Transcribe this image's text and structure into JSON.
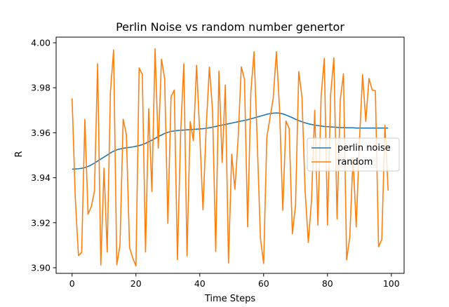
{
  "chart_data": {
    "type": "line",
    "title": "Perlin Noise vs random number genertor",
    "xlabel": "Time Steps",
    "ylabel": "R",
    "xlim": [
      -5,
      104
    ],
    "ylim": [
      3.8975,
      4.0025
    ],
    "xticks": [
      0,
      20,
      40,
      60,
      80,
      100
    ],
    "yticks": [
      3.9,
      3.92,
      3.94,
      3.96,
      3.98,
      4.0
    ],
    "ytick_labels": [
      "3.90",
      "3.92",
      "3.94",
      "3.96",
      "3.98",
      "4.00"
    ],
    "grid": false,
    "legend_placement": "center-right",
    "series": [
      {
        "name": "perlin noise",
        "color": "#1f77b4",
        "x": [
          0,
          1,
          2,
          3,
          4,
          5,
          6,
          7,
          8,
          9,
          10,
          11,
          12,
          13,
          14,
          15,
          16,
          17,
          18,
          19,
          20,
          21,
          22,
          23,
          24,
          25,
          26,
          27,
          28,
          29,
          30,
          31,
          32,
          33,
          34,
          35,
          36,
          37,
          38,
          39,
          40,
          41,
          42,
          43,
          44,
          45,
          46,
          47,
          48,
          49,
          50,
          51,
          52,
          53,
          54,
          55,
          56,
          57,
          58,
          59,
          60,
          61,
          62,
          63,
          64,
          65,
          66,
          67,
          68,
          69,
          70,
          71,
          72,
          73,
          74,
          75,
          76,
          77,
          78,
          79,
          80,
          81,
          82,
          83,
          84,
          85,
          86,
          87,
          88,
          89,
          90,
          91,
          92,
          93,
          94,
          95,
          96,
          97,
          98,
          99
        ],
        "y": [
          3.9438,
          3.9439,
          3.944,
          3.9442,
          3.9445,
          3.945,
          3.9457,
          3.9465,
          3.9474,
          3.9483,
          3.9492,
          3.9501,
          3.951,
          3.9518,
          3.9524,
          3.9528,
          3.9531,
          3.9533,
          3.9535,
          3.9537,
          3.954,
          3.9543,
          3.9547,
          3.9553,
          3.956,
          3.9567,
          3.9575,
          3.9583,
          3.959,
          3.9597,
          3.9602,
          3.9606,
          3.9608,
          3.961,
          3.9611,
          3.9612,
          3.9613,
          3.9614,
          3.9615,
          3.9616,
          3.9617,
          3.9618,
          3.962,
          3.9622,
          3.9625,
          3.9628,
          3.9631,
          3.9634,
          3.9637,
          3.964,
          3.9643,
          3.9646,
          3.9649,
          3.9652,
          3.9655,
          3.9658,
          3.9662,
          3.9666,
          3.967,
          3.9674,
          3.9678,
          3.9682,
          3.9685,
          3.9687,
          3.9688,
          3.9687,
          3.9684,
          3.9679,
          3.9673,
          3.9667,
          3.966,
          3.9654,
          3.9649,
          3.9644,
          3.964,
          3.9637,
          3.9634,
          3.9632,
          3.963,
          3.9628,
          3.9627,
          3.9626,
          3.9625,
          3.9624,
          3.9623,
          3.9623,
          3.9622,
          3.9622,
          3.9622,
          3.9621,
          3.9621,
          3.9621,
          3.9621,
          3.9621,
          3.9621,
          3.9621,
          3.9621,
          3.9621,
          3.9621,
          3.9621
        ]
      },
      {
        "name": "random",
        "color": "#ff7f0e",
        "x": [
          0,
          1,
          2,
          3,
          4,
          5,
          6,
          7,
          8,
          9,
          10,
          11,
          12,
          13,
          14,
          15,
          16,
          17,
          18,
          19,
          20,
          21,
          22,
          23,
          24,
          25,
          26,
          27,
          28,
          29,
          30,
          31,
          32,
          33,
          34,
          35,
          36,
          37,
          38,
          39,
          40,
          41,
          42,
          43,
          44,
          45,
          46,
          47,
          48,
          49,
          50,
          51,
          52,
          53,
          54,
          55,
          56,
          57,
          58,
          59,
          60,
          61,
          62,
          63,
          64,
          65,
          66,
          67,
          68,
          69,
          70,
          71,
          72,
          73,
          74,
          75,
          76,
          77,
          78,
          79,
          80,
          81,
          82,
          83,
          84,
          85,
          86,
          87,
          88,
          89,
          90,
          91,
          92,
          93,
          94,
          95,
          96,
          97,
          98,
          99
        ],
        "y": [
          3.9753,
          3.931,
          3.9054,
          3.9068,
          3.966,
          3.9238,
          3.9271,
          3.934,
          3.9907,
          3.9012,
          3.9443,
          3.907,
          3.9779,
          3.9968,
          3.9013,
          3.91,
          3.966,
          3.9592,
          3.909,
          3.9043,
          3.9008,
          3.9888,
          3.986,
          3.907,
          3.9707,
          3.9339,
          3.9974,
          3.9532,
          3.9927,
          3.984,
          3.9198,
          3.976,
          3.979,
          3.9036,
          3.96,
          3.9907,
          3.9052,
          3.965,
          3.9565,
          3.99,
          3.959,
          3.9258,
          3.962,
          3.9892,
          3.97,
          3.9072,
          3.9874,
          3.9468,
          3.9812,
          3.9021,
          3.9505,
          3.9349,
          3.9572,
          3.9893,
          3.9837,
          3.9182,
          3.978,
          3.996,
          3.956,
          3.913,
          3.9019,
          3.958,
          3.9667,
          3.9753,
          3.996,
          3.9702,
          3.9255,
          3.9652,
          3.962,
          3.9151,
          3.9279,
          3.9872,
          3.976,
          3.934,
          3.9112,
          3.93,
          3.97,
          3.919,
          3.976,
          3.9931,
          3.919,
          3.9772,
          3.9933,
          3.9217,
          3.9744,
          3.9862,
          3.9035,
          3.9138,
          3.949,
          3.9181,
          3.956,
          3.9859,
          3.965,
          3.9841,
          3.979,
          3.9787,
          3.9093,
          3.9125,
          3.9633,
          3.9343
        ]
      }
    ]
  }
}
